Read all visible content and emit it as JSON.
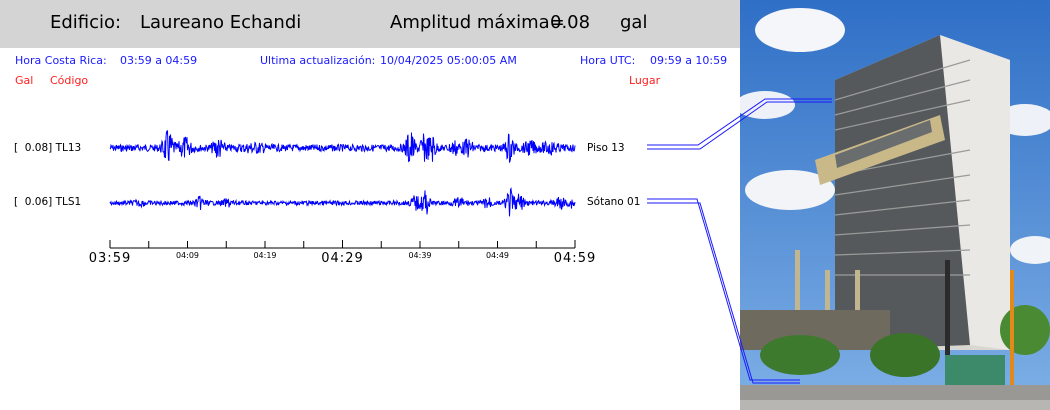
{
  "header": {
    "building_prefix": "Edificio:",
    "building_name": "Laureano Echandi",
    "amplitude_label": "Amplitud máxima=",
    "amplitude_value": "0.08",
    "amplitude_unit": "gal"
  },
  "info": {
    "cr_time_label": "Hora Costa Rica:",
    "cr_time_range": "03:59 a 04:59",
    "update_label": "Ultima actualización:",
    "update_value": "10/04/2025 05:00:05 AM",
    "utc_label": "Hora UTC:",
    "utc_range": "09:59 a 10:59"
  },
  "columns": {
    "gal": "Gal",
    "code": "Código",
    "place": "Lugar"
  },
  "channels": [
    {
      "amplitude": "[  0.08] TL13",
      "location": "Piso 13"
    },
    {
      "amplitude": "[  0.06] TLS1",
      "location": "Sótano 01"
    }
  ],
  "time_axis": {
    "major": [
      "03:59",
      "04:29",
      "04:59"
    ],
    "minor": [
      "04:09",
      "04:19",
      "04:39",
      "04:49"
    ]
  },
  "colors": {
    "trace": "#0000ff",
    "header_bg": "#d4d4d4",
    "info_text": "#1a1aff",
    "column_text": "#ff2020"
  }
}
